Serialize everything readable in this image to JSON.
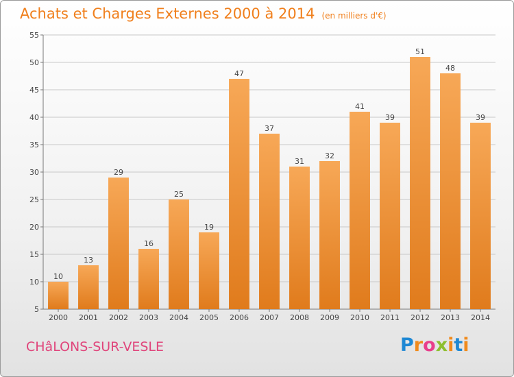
{
  "header": {
    "title": "Achats et Charges Externes 2000 à 2014",
    "subtitle": "(en milliers d'€)"
  },
  "footer": {
    "city": "CHâLONS-SUR-VESLE",
    "logo_letters": [
      "P",
      "r",
      "o",
      "x",
      "i",
      "t",
      "i"
    ]
  },
  "colors": {
    "bar_top": "#f7a857",
    "bar_bottom": "#e07b1c",
    "title": "#f07f1c",
    "city": "#e0457b",
    "grid": "#c8c8c8"
  },
  "chart_data": {
    "type": "bar",
    "title": "Achats et Charges Externes 2000 à 2014",
    "subtitle": "(en milliers d'€)",
    "categories": [
      "2000",
      "2001",
      "2002",
      "2003",
      "2004",
      "2005",
      "2006",
      "2007",
      "2008",
      "2009",
      "2010",
      "2011",
      "2012",
      "2013",
      "2014"
    ],
    "values": [
      10,
      13,
      29,
      16,
      25,
      19,
      47,
      37,
      31,
      32,
      41,
      39,
      51,
      48,
      39
    ],
    "ylim": [
      5,
      55
    ],
    "yticks": [
      5,
      10,
      15,
      20,
      25,
      30,
      35,
      40,
      45,
      50,
      55
    ],
    "grid": true,
    "data_labels": true
  }
}
